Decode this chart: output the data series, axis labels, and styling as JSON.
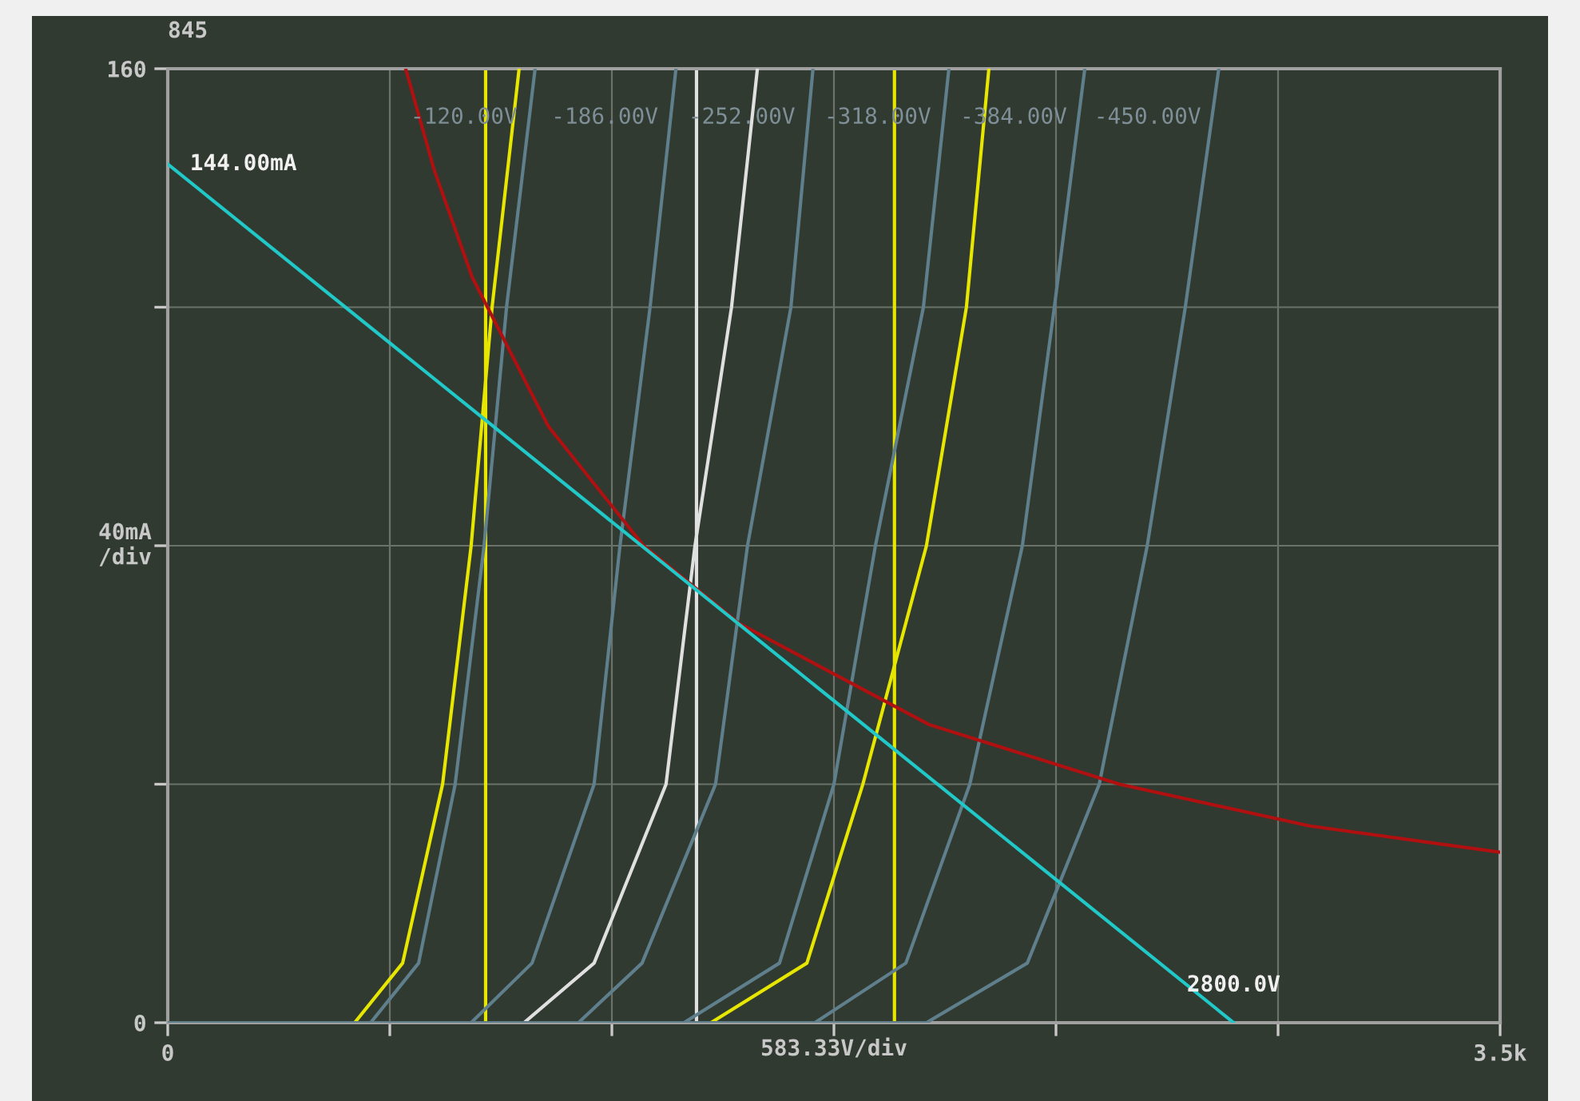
{
  "chart_data": {
    "type": "line",
    "title": "845",
    "xlabel": "583.33V/div",
    "ylabel": "40mA\n/div",
    "xlim": [
      0,
      3500
    ],
    "ylim": [
      0,
      160
    ],
    "xticks": [
      {
        "value": 0,
        "label": "0"
      },
      {
        "value": 583.33,
        "label": null
      },
      {
        "value": 1166.67,
        "label": null
      },
      {
        "value": 1750,
        "label": null
      },
      {
        "value": 2333.33,
        "label": null
      },
      {
        "value": 2916.67,
        "label": null
      },
      {
        "value": 3500,
        "label": "3.5k"
      }
    ],
    "yticks": [
      {
        "value": 0,
        "label": "0"
      },
      {
        "value": 40,
        "label": null
      },
      {
        "value": 80,
        "label": null
      },
      {
        "value": 120,
        "label": null
      },
      {
        "value": 160,
        "label": "160"
      }
    ],
    "grid": true,
    "series": [
      {
        "color": "#e6e600",
        "x": [
          0,
          491,
          617,
          722,
          797,
          852,
          923
        ],
        "values": [
          0,
          0,
          10,
          40,
          80,
          120,
          160
        ]
      },
      {
        "name": "-120.00V",
        "color": "#5f7f8c",
        "x": [
          0,
          533,
          659,
          755,
          831,
          890,
          965
        ],
        "values": [
          0,
          0,
          10,
          40,
          80,
          120,
          160
        ]
      },
      {
        "name": "-186.00V",
        "color": "#5f7f8c",
        "x": [
          0,
          797,
          957,
          1120,
          1188,
          1267,
          1335
        ],
        "values": [
          0,
          0,
          10,
          40,
          80,
          120,
          160
        ]
      },
      {
        "color": "#e0e0e0",
        "x": [
          0,
          936,
          1120,
          1309,
          1385,
          1481,
          1549
        ],
        "values": [
          0,
          0,
          10,
          40,
          80,
          120,
          160
        ]
      },
      {
        "name": "-252.00V",
        "color": "#5f7f8c",
        "x": [
          0,
          1079,
          1246,
          1439,
          1523,
          1637,
          1695
        ],
        "values": [
          0,
          0,
          10,
          40,
          80,
          120,
          160
        ]
      },
      {
        "name": "-318.00V",
        "color": "#5f7f8c",
        "x": [
          0,
          1356,
          1607,
          1750,
          1859,
          1985,
          2052
        ],
        "values": [
          0,
          0,
          10,
          40,
          80,
          120,
          160
        ]
      },
      {
        "color": "#e6e600",
        "x": [
          0,
          1427,
          1679,
          1826,
          1993,
          2098,
          2157
        ],
        "values": [
          0,
          0,
          10,
          40,
          80,
          120,
          160
        ]
      },
      {
        "name": "-384.00V",
        "color": "#5f7f8c",
        "x": [
          0,
          1700,
          1939,
          2107,
          2245,
          2329,
          2409
        ],
        "values": [
          0,
          0,
          10,
          40,
          80,
          120,
          160
        ]
      },
      {
        "name": "-450.00V",
        "color": "#5f7f8c",
        "x": [
          0,
          1993,
          2258,
          2447,
          2573,
          2673,
          2761
        ],
        "values": [
          0,
          0,
          10,
          40,
          80,
          120,
          160
        ]
      },
      {
        "color": "#b01010",
        "x": [
          625,
          700,
          800,
          1000,
          1250,
          1500,
          2000,
          2500,
          3000,
          3500
        ],
        "values": [
          160,
          143,
          125,
          100,
          80,
          67,
          50,
          40,
          33,
          28.6
        ]
      },
      {
        "color": "#20c8c8",
        "x": [
          0,
          2800
        ],
        "values": [
          144,
          0
        ]
      }
    ],
    "ref_lines": [
      {
        "axis": "x",
        "value": 835,
        "color": "#e6e600"
      },
      {
        "axis": "x",
        "value": 1389,
        "color": "#e0e0e0"
      },
      {
        "axis": "x",
        "value": 1909,
        "color": "#e6e600"
      }
    ],
    "annotations": [
      {
        "text": "144.00mA",
        "x": 0,
        "y": 144
      },
      {
        "text": "2800.0V",
        "x": 2800,
        "y": 0
      }
    ]
  }
}
